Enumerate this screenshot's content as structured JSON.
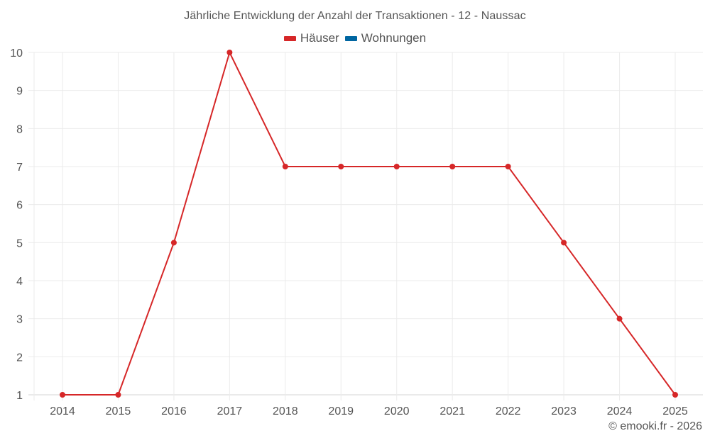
{
  "chart_data": {
    "type": "line",
    "title": "Jährliche Entwicklung der Anzahl der Transaktionen - 12 - Naussac",
    "categories": [
      "2014",
      "2015",
      "2016",
      "2017",
      "2018",
      "2019",
      "2020",
      "2021",
      "2022",
      "2023",
      "2024",
      "2025"
    ],
    "series": [
      {
        "name": "Häuser",
        "color": "#d62728",
        "values": [
          1,
          1,
          5,
          10,
          7,
          7,
          7,
          7,
          7,
          5,
          3,
          1
        ]
      },
      {
        "name": "Wohnungen",
        "color": "#0066a1",
        "values": []
      }
    ],
    "xlabel": "",
    "ylabel": "",
    "ylim": [
      1,
      10
    ],
    "yticks": [
      "1",
      "2",
      "3",
      "4",
      "5",
      "6",
      "7",
      "8",
      "9",
      "10"
    ],
    "grid": true,
    "legend_position": "top"
  },
  "title": "Jährliche Entwicklung der Anzahl der Transaktionen - 12 - Naussac",
  "legend": [
    {
      "label": "Häuser",
      "color": "#d62728"
    },
    {
      "label": "Wohnungen",
      "color": "#0066a1"
    }
  ],
  "credit": "© emooki.fr - 2026"
}
